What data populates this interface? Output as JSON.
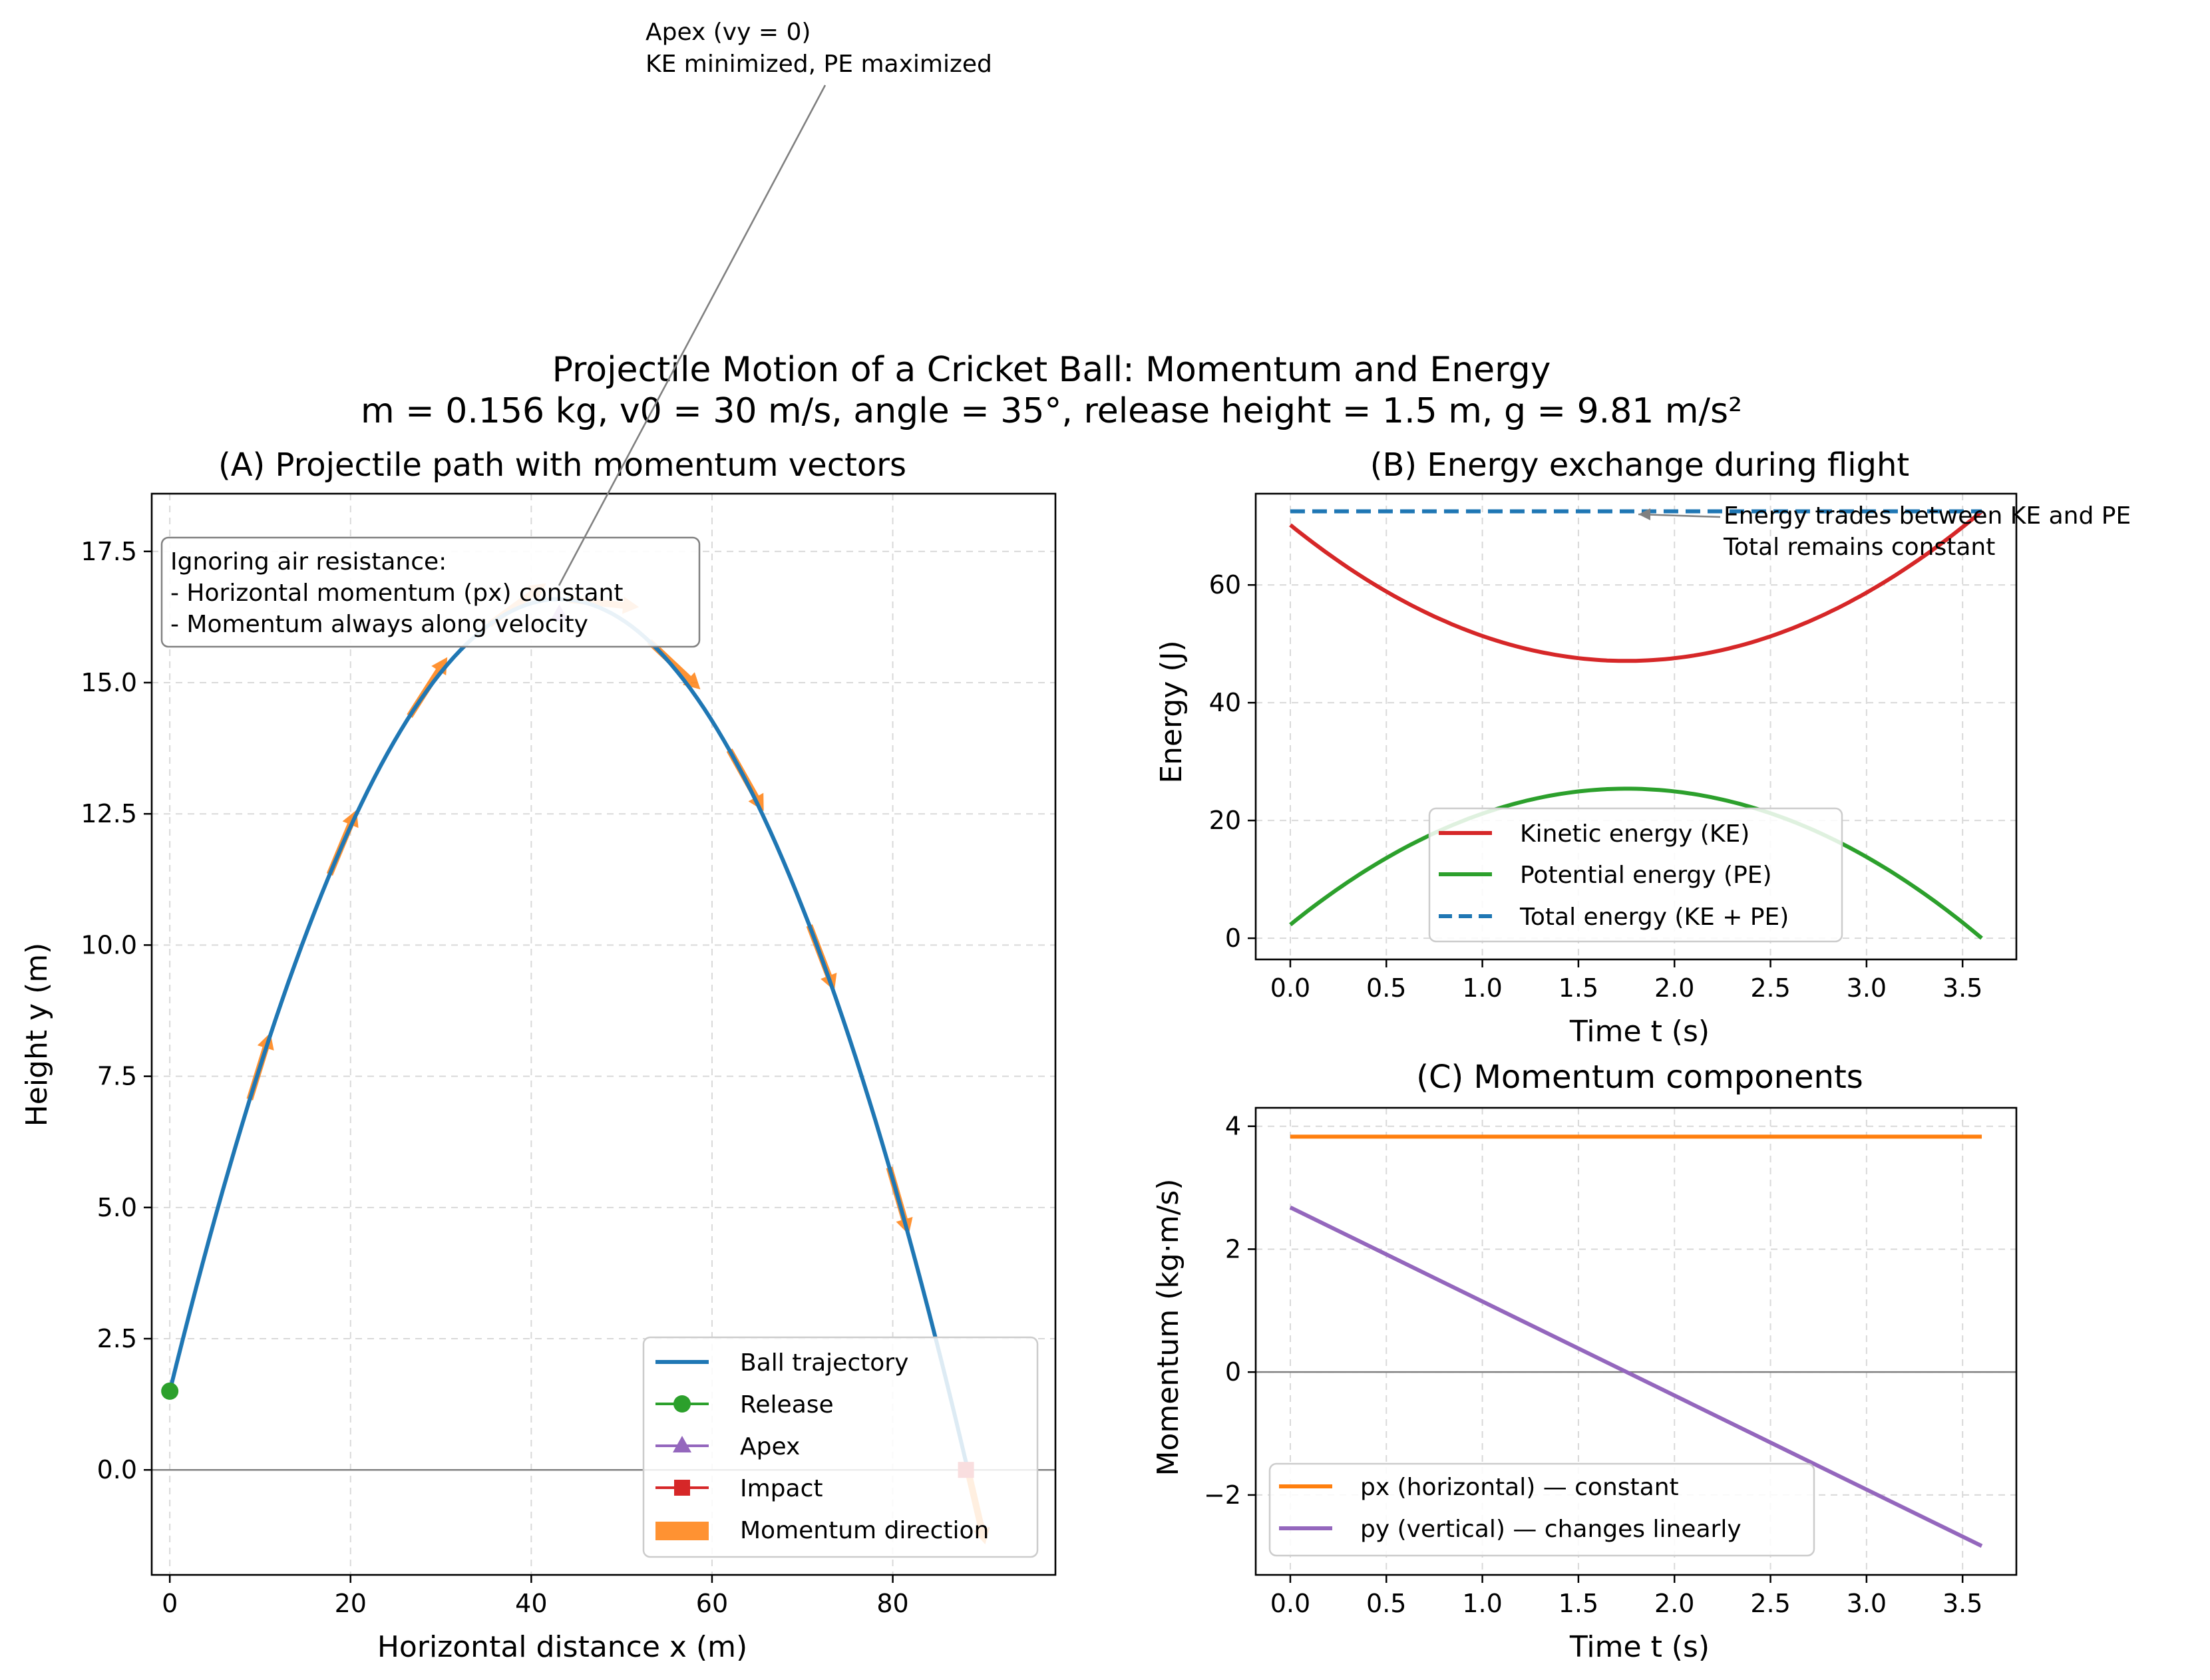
{
  "figure": {
    "title_line1": "Projectile Motion of a Cricket Ball: Momentum and Energy",
    "title_line2": "m = 0.156 kg, v0 = 30 m/s, angle = 35°, release height = 1.5 m, g = 9.81 m/s²"
  },
  "params": {
    "m": 0.156,
    "v0": 30,
    "angle_deg": 35,
    "h0": 1.5,
    "g": 9.81
  },
  "chart_data": [
    {
      "id": "A",
      "type": "line",
      "title": "(A) Projectile path with momentum vectors",
      "xlabel": "Horizontal distance x (m)",
      "ylabel": "Height y (m)",
      "xlim": [
        -2,
        98
      ],
      "ylim": [
        -2,
        18.6
      ],
      "xticks": [
        0,
        20,
        40,
        60,
        80
      ],
      "yticks": [
        0.0,
        2.5,
        5.0,
        7.5,
        10.0,
        12.5,
        15.0,
        17.5
      ],
      "grid": true,
      "trajectory_samples": 121,
      "release": {
        "x": 0,
        "y": 1.5
      },
      "apex": {
        "x": 43.1,
        "y": 16.3
      },
      "impact": {
        "x": 88.1,
        "y": 0
      },
      "momentum_arrow_times": [
        0.36,
        0.72,
        1.08,
        1.44,
        1.8,
        2.16,
        2.52,
        2.88,
        3.24,
        3.6
      ],
      "legend": [
        "Ball trajectory",
        "Release",
        "Apex",
        "Impact",
        "Momentum direction"
      ],
      "legend_position": "lower-right",
      "textbox": [
        "Ignoring air resistance:",
        "- Horizontal momentum (px) constant",
        "- Momentum always along velocity"
      ],
      "annotation": [
        "Apex (vy = 0)",
        "KE minimized, PE maximized"
      ]
    },
    {
      "id": "B",
      "type": "line",
      "title": "(B) Energy exchange during flight",
      "xlabel": "Time t (s)",
      "ylabel": "Energy (J)",
      "xlim": [
        -0.18,
        3.78
      ],
      "ylim": [
        -3.6,
        75.5
      ],
      "xticks": [
        0.0,
        0.5,
        1.0,
        1.5,
        2.0,
        2.5,
        3.0,
        3.5
      ],
      "yticks": [
        0,
        20,
        40,
        60
      ],
      "t_end": 3.6,
      "grid": true,
      "series": [
        {
          "name": "Kinetic energy (KE)",
          "color": "#d62728",
          "start": 70.2,
          "min_at_t": 1.75,
          "min": 47.1,
          "end": 72.5
        },
        {
          "name": "Potential energy (PE)",
          "color": "#2ca02c",
          "start": 2.3,
          "max_at_t": 1.75,
          "max": 25.4,
          "end": 0
        },
        {
          "name": "Total energy (KE + PE)",
          "color": "#1f77b4",
          "style": "dashed",
          "value": 72.5
        }
      ],
      "legend_position": "lower-center",
      "annotation": [
        "Energy trades between KE and PE",
        "Total remains constant"
      ]
    },
    {
      "id": "C",
      "type": "line",
      "title": "(C) Momentum components",
      "xlabel": "Time t (s)",
      "ylabel": "Momentum (kg·m/s)",
      "xlim": [
        -0.18,
        3.78
      ],
      "ylim": [
        -3.3,
        4.3
      ],
      "xticks": [
        0.0,
        0.5,
        1.0,
        1.5,
        2.0,
        2.5,
        3.0,
        3.5
      ],
      "yticks": [
        -2,
        0,
        2,
        4
      ],
      "t_end": 3.6,
      "grid": true,
      "series": [
        {
          "name": "px (horizontal) — constant",
          "color": "#ff7f0e",
          "start": 3.83,
          "end": 3.83
        },
        {
          "name": "py (vertical) — changes linearly",
          "color": "#9467bd",
          "start": 2.68,
          "end": -2.83
        }
      ],
      "legend_position": "lower-left"
    }
  ],
  "colors": {
    "trajectory": "#1f77b4",
    "release": "#2ca02c",
    "apex": "#9467bd",
    "impact": "#d62728",
    "momentum": "#ff7f0e",
    "zero_line": "#808080"
  }
}
